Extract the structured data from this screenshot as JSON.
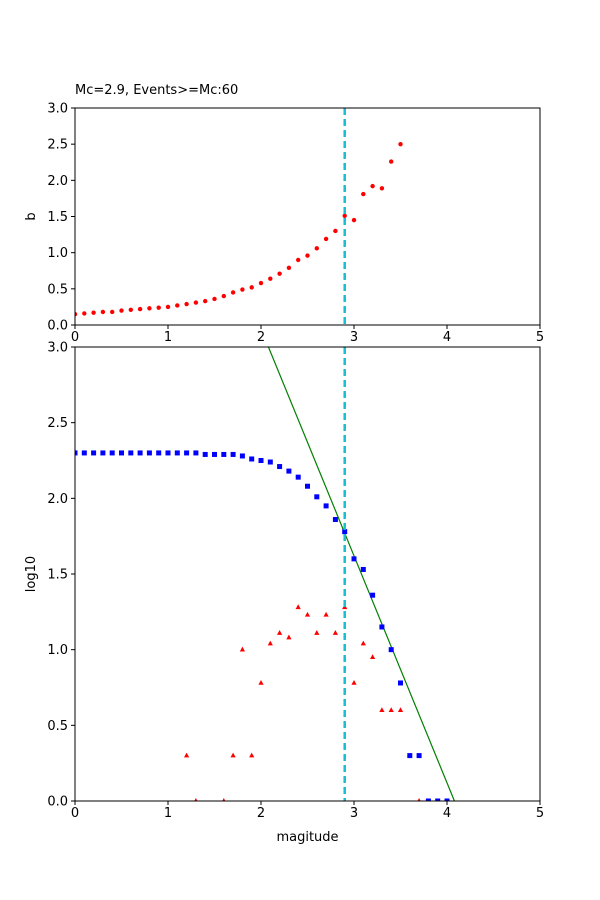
{
  "chart_data": [
    {
      "type": "scatter",
      "title": "Mc=2.9, Events>=Mc:60",
      "xlabel": "",
      "ylabel": "b",
      "xlim": [
        0,
        5
      ],
      "ylim": [
        0,
        3
      ],
      "x_ticks": [
        "0",
        "1",
        "2",
        "3",
        "4",
        "5"
      ],
      "y_ticks": [
        "0.0",
        "0.5",
        "1.0",
        "1.5",
        "2.0",
        "2.5",
        "3.0"
      ],
      "mc_line": 2.9,
      "colors": {
        "points": "#ff0000",
        "mc_line": "#17becf"
      },
      "series": [
        {
          "name": "b-value",
          "x": [
            0.0,
            0.1,
            0.2,
            0.3,
            0.4,
            0.5,
            0.6,
            0.7,
            0.8,
            0.9,
            1.0,
            1.1,
            1.2,
            1.3,
            1.4,
            1.5,
            1.6,
            1.7,
            1.8,
            1.9,
            2.0,
            2.1,
            2.2,
            2.3,
            2.4,
            2.5,
            2.6,
            2.7,
            2.8,
            2.9,
            3.0,
            3.1,
            3.2,
            3.3,
            3.4,
            3.5
          ],
          "y": [
            0.15,
            0.16,
            0.17,
            0.18,
            0.18,
            0.2,
            0.21,
            0.22,
            0.23,
            0.24,
            0.25,
            0.27,
            0.29,
            0.31,
            0.33,
            0.36,
            0.4,
            0.45,
            0.49,
            0.52,
            0.58,
            0.64,
            0.71,
            0.79,
            0.9,
            0.96,
            1.06,
            1.19,
            1.3,
            1.51,
            1.45,
            1.81,
            1.92,
            1.89,
            2.26,
            2.5
          ]
        }
      ]
    },
    {
      "type": "scatter",
      "title": "",
      "xlabel": "magitude",
      "ylabel": "log10",
      "xlim": [
        0,
        5
      ],
      "ylim": [
        0,
        3
      ],
      "x_ticks": [
        "0",
        "1",
        "2",
        "3",
        "4",
        "5"
      ],
      "y_ticks": [
        "0.0",
        "0.5",
        "1.0",
        "1.5",
        "2.0",
        "2.5",
        "3.0"
      ],
      "mc_line": 2.9,
      "fit_line": {
        "x": [
          2.08,
          4.08
        ],
        "y": [
          3.0,
          0.0
        ]
      },
      "colors": {
        "cumulative": "#0000ff",
        "noncumulative": "#ff0000",
        "fit": "#008000",
        "mc_line": "#17becf"
      },
      "series": [
        {
          "name": "cumulative",
          "marker": "square",
          "x": [
            0.0,
            0.1,
            0.2,
            0.3,
            0.4,
            0.5,
            0.6,
            0.7,
            0.8,
            0.9,
            1.0,
            1.1,
            1.2,
            1.3,
            1.4,
            1.5,
            1.6,
            1.7,
            1.8,
            1.9,
            2.0,
            2.1,
            2.2,
            2.3,
            2.4,
            2.5,
            2.6,
            2.7,
            2.8,
            2.9,
            3.0,
            3.1,
            3.2,
            3.3,
            3.4,
            3.5,
            3.6,
            3.7,
            3.8,
            3.9,
            4.0
          ],
          "y": [
            2.3,
            2.3,
            2.3,
            2.3,
            2.3,
            2.3,
            2.3,
            2.3,
            2.3,
            2.3,
            2.3,
            2.3,
            2.3,
            2.3,
            2.29,
            2.29,
            2.29,
            2.29,
            2.28,
            2.26,
            2.25,
            2.24,
            2.21,
            2.18,
            2.14,
            2.08,
            2.01,
            1.95,
            1.86,
            1.78,
            1.6,
            1.53,
            1.36,
            1.15,
            1.0,
            0.78,
            0.3,
            0.3,
            0.0,
            0.0,
            0.0
          ]
        },
        {
          "name": "non-cumulative",
          "marker": "triangle",
          "x": [
            1.2,
            1.3,
            1.6,
            1.7,
            1.8,
            1.9,
            2.0,
            2.1,
            2.2,
            2.3,
            2.4,
            2.5,
            2.6,
            2.7,
            2.8,
            2.9,
            3.0,
            3.1,
            3.2,
            3.3,
            3.4,
            3.5,
            3.7
          ],
          "y": [
            0.3,
            0.0,
            0.0,
            0.3,
            1.0,
            0.3,
            0.78,
            1.04,
            1.11,
            1.08,
            1.28,
            1.23,
            1.11,
            1.23,
            1.11,
            1.28,
            0.78,
            1.04,
            0.95,
            0.6,
            0.6,
            0.6,
            0.0
          ]
        }
      ]
    }
  ]
}
